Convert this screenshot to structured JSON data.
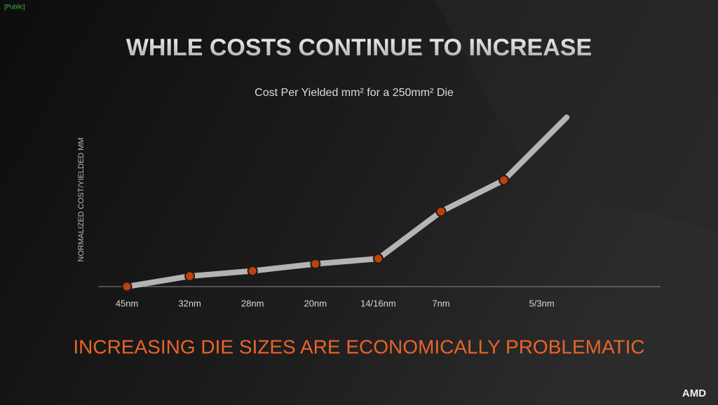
{
  "tag": "[Public]",
  "chart_data": {
    "type": "line",
    "title": "WHILE COSTS CONTINUE TO INCREASE",
    "subtitle": "Cost Per Yielded mm² for a 250mm² Die",
    "y_label": "NORMALIZED COST/YIELDED MM",
    "categories": [
      "45nm",
      "32nm",
      "28nm",
      "20nm",
      "14/16nm",
      "7nm",
      "5/3nm",
      null
    ],
    "values": [
      0,
      6,
      9,
      13,
      16,
      43,
      61,
      97
    ],
    "ylim": [
      0,
      100
    ],
    "color": "#cfcfcf",
    "marker_color": "#c0400a"
  },
  "footer": "INCREASING DIE SIZES ARE ECONOMICALLY PROBLEMATIC",
  "logo": "AMD"
}
